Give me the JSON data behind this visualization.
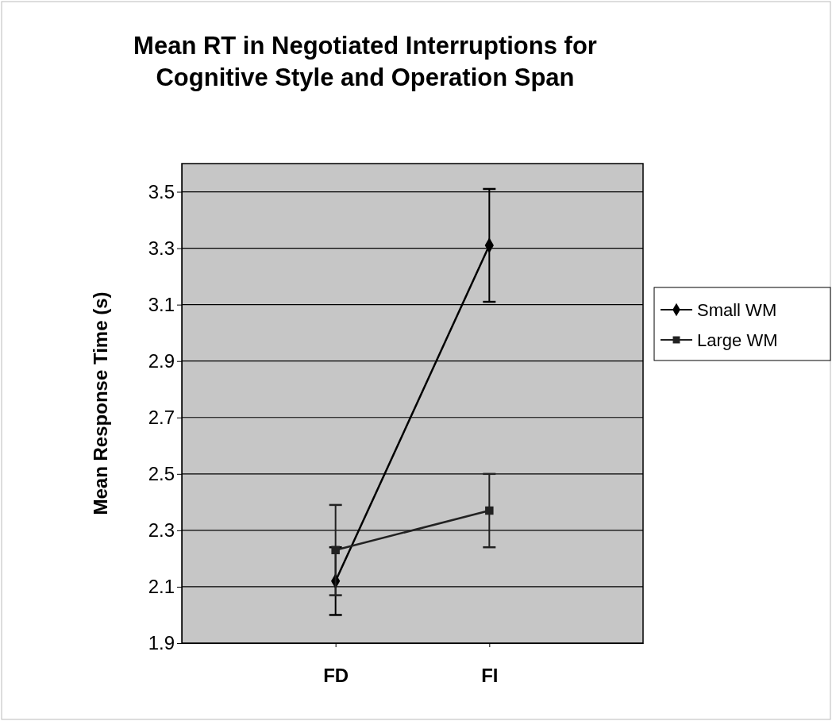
{
  "chart_data": {
    "type": "line",
    "title": "Mean RT in Negotiated Interruptions for Cognitive Style and Operation Span",
    "ylabel": "Mean Response Time (s)",
    "categories": [
      "FD",
      "FI"
    ],
    "series": [
      {
        "name": "Small WM",
        "color": "#000000",
        "values": [
          2.12,
          3.31
        ],
        "errors": [
          0.12,
          0.2
        ],
        "marker": "diamond"
      },
      {
        "name": "Large WM",
        "color": "#222222",
        "values": [
          2.23,
          2.37
        ],
        "errors": [
          0.16,
          0.13
        ],
        "marker": "square"
      }
    ],
    "ylim": [
      1.9,
      3.6
    ],
    "yticks": [
      1.9,
      2.1,
      2.3,
      2.5,
      2.7,
      2.9,
      3.1,
      3.3,
      3.5
    ],
    "grid": "y",
    "legend": "right",
    "line_style": "solid"
  }
}
